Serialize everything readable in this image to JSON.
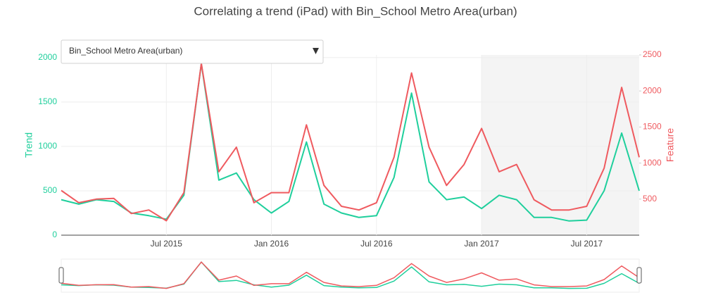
{
  "dropdown": {
    "label": "Bin_School Metro Area(urban)"
  },
  "chart_data": {
    "type": "line",
    "title": "Correlating a trend (iPad) with Bin_School Metro Area(urban)",
    "x": [
      "2015-01",
      "2015-02",
      "2015-03",
      "2015-04",
      "2015-05",
      "2015-06",
      "2015-07",
      "2015-08",
      "2015-09",
      "2015-10",
      "2015-11",
      "2015-12",
      "2016-01",
      "2016-02",
      "2016-03",
      "2016-04",
      "2016-05",
      "2016-06",
      "2016-07",
      "2016-08",
      "2016-09",
      "2016-10",
      "2016-11",
      "2016-12",
      "2017-01",
      "2017-02",
      "2017-03",
      "2017-04",
      "2017-05",
      "2017-06",
      "2017-07",
      "2017-08",
      "2017-09",
      "2017-10"
    ],
    "xlim": [
      "2015-01",
      "2017-10"
    ],
    "xticks": [
      {
        "value": "2015-07",
        "label": "Jul 2015"
      },
      {
        "value": "2016-01",
        "label": "Jan 2016"
      },
      {
        "value": "2016-07",
        "label": "Jul 2016"
      },
      {
        "value": "2017-01",
        "label": "Jan 2017"
      },
      {
        "value": "2017-07",
        "label": "Jul 2017"
      }
    ],
    "shaded_range": [
      "2017-01",
      "2017-10"
    ],
    "ylabel": "Trend",
    "ylim": [
      0,
      2030
    ],
    "yticks": [
      0,
      500,
      1000,
      1500,
      2000
    ],
    "y2label": "Feature",
    "y2lim": [
      0,
      2500
    ],
    "y2ticks": [
      500,
      1000,
      1500,
      2000,
      2500
    ],
    "grid": true,
    "range_slider": true,
    "series": [
      {
        "name": "Trend",
        "color": "#1fcf9c",
        "values": [
          400,
          350,
          400,
          380,
          250,
          220,
          180,
          450,
          1930,
          620,
          700,
          400,
          250,
          380,
          1050,
          350,
          250,
          200,
          220,
          650,
          1600,
          600,
          400,
          430,
          300,
          450,
          400,
          200,
          200,
          160,
          170,
          500,
          1150,
          500
        ]
      },
      {
        "name": "Feature",
        "color": "#ef5a5f",
        "axis": "y2",
        "values": [
          620,
          450,
          500,
          510,
          300,
          350,
          200,
          590,
          2380,
          880,
          1220,
          450,
          590,
          590,
          1530,
          690,
          400,
          350,
          450,
          1080,
          2250,
          1220,
          690,
          980,
          1480,
          880,
          980,
          490,
          350,
          350,
          400,
          930,
          2050,
          1080
        ]
      }
    ]
  }
}
